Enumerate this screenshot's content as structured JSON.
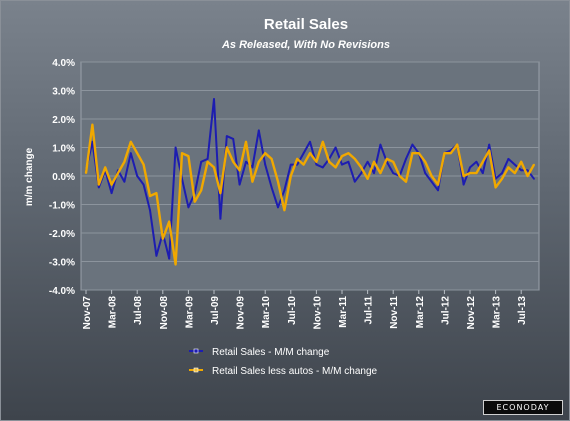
{
  "chart_data": {
    "type": "line",
    "title": "Retail Sales",
    "subtitle": "As Released, With No Revisions",
    "ylabel": "m/m change",
    "xlabel": "",
    "ylim": [
      -4.0,
      4.0
    ],
    "y_ticks": [
      "4.0%",
      "3.0%",
      "2.0%",
      "1.0%",
      "0.0%",
      "-1.0%",
      "-2.0%",
      "-3.0%",
      "-4.0%"
    ],
    "x_tick_labels": [
      "Nov-07",
      "Mar-08",
      "Jul-08",
      "Nov-08",
      "Mar-09",
      "Jul-09",
      "Nov-09",
      "Mar-10",
      "Jul-10",
      "Nov-10",
      "Mar-11",
      "Jul-11",
      "Nov-11",
      "Mar-12",
      "Jul-12",
      "Nov-12",
      "Mar-13",
      "Jul-13"
    ],
    "x_start": "Nov-07",
    "x_end": "Oct-13",
    "grid": true,
    "legend_position": "bottom",
    "series": [
      {
        "name": "Retail Sales - M/M change",
        "color": "#1d1db0",
        "marker_color": "#1d1db0",
        "values": [
          0.2,
          1.2,
          -0.4,
          0.2,
          -0.6,
          0.2,
          -0.2,
          0.8,
          0.0,
          -0.3,
          -1.2,
          -2.8,
          -2.0,
          -2.9,
          1.0,
          -0.1,
          -1.1,
          -0.6,
          0.5,
          0.6,
          2.7,
          -1.5,
          1.4,
          1.3,
          -0.3,
          0.5,
          0.3,
          1.6,
          0.4,
          -0.4,
          -1.1,
          -0.5,
          0.4,
          0.4,
          0.8,
          1.2,
          0.4,
          0.3,
          0.6,
          1.0,
          0.4,
          0.5,
          -0.2,
          0.1,
          0.5,
          0.1,
          1.1,
          0.5,
          0.1,
          0.0,
          0.6,
          1.1,
          0.8,
          0.1,
          -0.2,
          -0.5,
          0.8,
          0.9,
          1.1,
          -0.3,
          0.3,
          0.5,
          0.1,
          1.1,
          -0.1,
          0.1,
          0.6,
          0.4,
          0.2,
          0.2,
          -0.1
        ]
      },
      {
        "name": "Retail Sales less autos - M/M change",
        "color": "#f0a800",
        "marker_color": "#f0c040",
        "values": [
          0.1,
          1.8,
          -0.3,
          0.3,
          -0.3,
          0.1,
          0.5,
          1.2,
          0.8,
          0.4,
          -0.7,
          -0.6,
          -2.2,
          -1.6,
          -3.1,
          0.8,
          0.7,
          -0.9,
          -0.5,
          0.5,
          0.3,
          -0.6,
          1.0,
          0.5,
          0.2,
          1.2,
          -0.2,
          0.5,
          0.8,
          0.6,
          -0.2,
          -1.2,
          0.0,
          0.6,
          0.4,
          0.8,
          0.5,
          1.2,
          0.5,
          0.3,
          0.7,
          0.8,
          0.6,
          0.3,
          -0.1,
          0.5,
          0.1,
          0.6,
          0.5,
          0.0,
          -0.2,
          0.8,
          0.8,
          0.5,
          0.0,
          -0.3,
          0.8,
          0.8,
          1.1,
          0.0,
          0.1,
          0.1,
          0.5,
          0.9,
          -0.4,
          -0.1,
          0.3,
          0.1,
          0.5,
          0.0,
          0.4
        ]
      }
    ]
  },
  "footer": {
    "brand": "ECONODAY"
  }
}
